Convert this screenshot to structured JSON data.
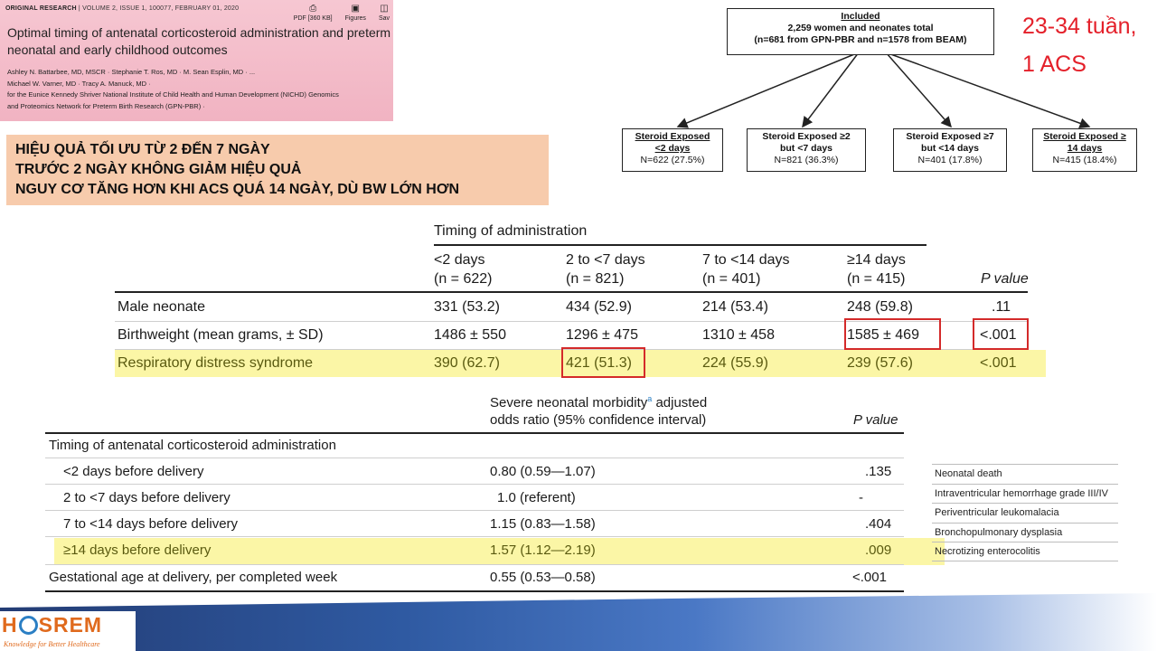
{
  "journal": {
    "meta": "ORIGINAL RESEARCH",
    "issue": "VOLUME 2, ISSUE 1, 100077, FEBRUARY 01, 2020",
    "tools": [
      "PDF [360 KB]",
      "Figures",
      "Sav"
    ],
    "title": "Optimal timing of antenatal corticosteroid administration and preterm neonatal and early childhood outcomes",
    "authors_line1": "Ashley N. Battarbee, MD, MSCR  ·  Stephanie T. Ros, MD  ·  M. Sean Esplin, MD  ·  ...",
    "authors_line2": "Michael W. Varner, MD  ·  Tracy A. Manuck, MD  ·",
    "authors_line3": "for the Eunice Kennedy Shriver National Institute of Child Health and Human Development (NICHD) Genomics",
    "authors_line4": "and Proteomics Network for Preterm Birth Research (GPN-PBR)  ·"
  },
  "summary": {
    "line1": "HIỆU QUẢ TỐI ƯU TỪ 2 ĐẾN 7 NGÀY",
    "line2": "TRƯỚC 2 NGÀY KHÔNG GIẢM HIỆU QUẢ",
    "line3": "NGUY CƠ TĂNG HƠN KHI ACS QUÁ 14 NGÀY, DÙ BW LỚN HƠN"
  },
  "flowchart": {
    "top": {
      "title": "Included",
      "line1": "2,259 women and neonates total",
      "line2": "(n=681 from GPN-PBR and n=1578 from BEAM)"
    },
    "boxes": [
      {
        "title": "Steroid Exposed",
        "title2": "<2 days",
        "n": "N=622 (27.5%)"
      },
      {
        "title": "Steroid Exposed ≥2",
        "title2": "but <7 days",
        "n": "N=821 (36.3%)"
      },
      {
        "title": "Steroid Exposed ≥7",
        "title2": "but <14 days",
        "n": "N=401 (17.8%)"
      },
      {
        "title": "Steroid Exposed ≥",
        "title2": "14 days",
        "n": "N=415 (18.4%)"
      }
    ]
  },
  "note": {
    "line1": "23-34 tuần,",
    "line2": "1 ACS"
  },
  "table1": {
    "group_header": "Timing of administration",
    "columns": [
      {
        "l1": "<2 days",
        "l2": "(n = 622)"
      },
      {
        "l1": "2 to <7 days",
        "l2": "(n = 821)"
      },
      {
        "l1": "7 to <14 days",
        "l2": "(n = 401)"
      },
      {
        "l1": "≥14 days",
        "l2": "(n = 415)"
      }
    ],
    "pvalue_header": "P value",
    "rows": [
      {
        "label": "Male neonate",
        "v": [
          "331 (53.2)",
          "434 (52.9)",
          "214 (53.4)",
          "248 (59.8)"
        ],
        "p": ".11"
      },
      {
        "label": "Birthweight (mean grams, ± SD)",
        "v": [
          "1486 ± 550",
          "1296 ± 475",
          "1310 ± 458",
          "1585 ± 469"
        ],
        "p": "<.001"
      },
      {
        "label": "Respiratory distress syndrome",
        "v": [
          "390 (62.7)",
          "421 (51.3)",
          "224 (55.9)",
          "239 (57.6)"
        ],
        "p": "<.001"
      }
    ]
  },
  "table2": {
    "header1": "Severe neonatal morbidity",
    "header1_sup": "a",
    "header1_tail": " adjusted",
    "header2": "odds ratio (95% confidence interval)",
    "pvalue_header": "P value",
    "section": "Timing of antenatal corticosteroid administration",
    "rows": [
      {
        "label": "<2 days before delivery",
        "or": "0.80 (0.59—1.07)",
        "p": ".135"
      },
      {
        "label": "2 to <7 days before delivery",
        "or": "1.0 (referent)",
        "p": "-"
      },
      {
        "label": "7 to <14 days before delivery",
        "or": "1.15 (0.83—1.58)",
        "p": ".404"
      },
      {
        "label": "≥14 days before delivery",
        "or": "1.57 (1.12—2.19)",
        "p": ".009"
      },
      {
        "label": "Gestational age at delivery, per completed week",
        "or": "0.55 (0.53—0.58)",
        "p": "<.001"
      }
    ]
  },
  "morbidities": [
    "Neonatal death",
    "Intraventricular hemorrhage grade III/IV",
    "Periventricular leukomalacia",
    "Bronchopulmonary dysplasia",
    "Necrotizing enterocolitis"
  ],
  "footer": {
    "logo_pre": "H",
    "logo_post": "SREM",
    "tagline": "Knowledge for Better Healthcare"
  },
  "colors": {
    "highlight": "#fbf6a6",
    "redbox": "#d42a2a",
    "note": "#e4202a",
    "summary_bg": "#f7cbac",
    "journal_bg": "#f3bccb"
  }
}
